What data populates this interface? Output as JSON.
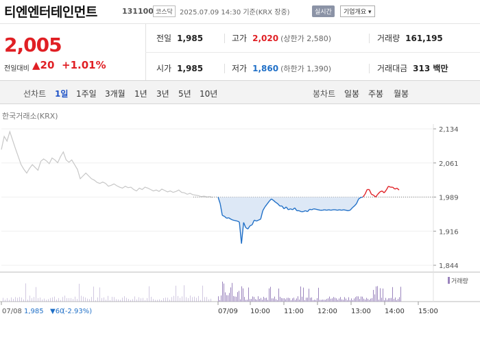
{
  "header": {
    "name": "티엔엔터테인먼트",
    "code": "131100",
    "market": "코스닥",
    "as_of": "2025.07.09 14:30 기준(KRX 장중)",
    "realtime_label": "실시간",
    "company_label": "기업개요 ▾"
  },
  "quote": {
    "price": "2,005",
    "change_label": "전일대비",
    "change_value": "▲20",
    "change_percent": "+1.01%",
    "prev_close_label": "전일",
    "prev_close": "1,985",
    "open_label": "시가",
    "open": "1,985",
    "high_label": "고가",
    "high": "2,020",
    "upper_limit": "(상한가 2,580)",
    "low_label": "저가",
    "low": "1,860",
    "lower_limit": "(하한가 1,390)",
    "volume_label": "거래량",
    "volume": "161,195",
    "amount_label": "거래대금",
    "amount": "313 백만"
  },
  "tabs": {
    "line_label": "선차트",
    "periods": [
      "1일",
      "1주일",
      "3개월",
      "1년",
      "3년",
      "5년",
      "10년"
    ],
    "active_period": 0,
    "candle_label": "봉차트",
    "candle_periods": [
      "일봉",
      "주봉",
      "월봉"
    ]
  },
  "chart_data": {
    "type": "line",
    "source": "한국거래소(KRX)",
    "ylim": [
      1844,
      2134
    ],
    "y_ticks": [
      "2,134",
      "2,061",
      "1,989",
      "1,916",
      "1,844"
    ],
    "x_ticks": [
      "07/08",
      "07/09",
      "10:00",
      "11:00",
      "12:00",
      "13:00",
      "14:00",
      "15:00"
    ],
    "baseline": 1989,
    "previous_day": {
      "values": [
        2090,
        2118,
        2108,
        2128,
        2110,
        2092,
        2075,
        2058,
        2048,
        2040,
        2050,
        2058,
        2052,
        2046,
        2065,
        2070,
        2066,
        2060,
        2072,
        2068,
        2062,
        2075,
        2085,
        2068,
        2063,
        2068,
        2058,
        2048,
        2028,
        2034,
        2040,
        2034,
        2028,
        2025,
        2020,
        2018,
        2021,
        2018,
        2012,
        2014,
        2017,
        2013,
        2010,
        2008,
        2012,
        2009,
        2010,
        2005,
        2002,
        2008,
        2005,
        2010,
        2008,
        2005,
        2002,
        2004,
        2001,
        2006,
        2003,
        2000,
        2002,
        1999,
        2001,
        2004,
        1999,
        1998,
        1995,
        1997,
        1994,
        1993,
        1992,
        1990,
        1991,
        1989,
        1990,
        1988
      ],
      "color": "#c7c7c7"
    },
    "today": {
      "values": [
        1989,
        1975,
        1950,
        1948,
        1944,
        1945,
        1942,
        1940,
        1939,
        1938,
        1936,
        1890,
        1935,
        1924,
        1921,
        1928,
        1930,
        1940,
        1938,
        1940,
        1942,
        1960,
        1968,
        1974,
        1980,
        1985,
        1982,
        1978,
        1975,
        1970,
        1970,
        1964,
        1968,
        1962,
        1964,
        1962,
        1966,
        1960,
        1960,
        1958,
        1958,
        1960,
        1958,
        1963,
        1962,
        1964,
        1963,
        1962,
        1961,
        1961,
        1962,
        1961,
        1962,
        1961,
        1962,
        1962,
        1961,
        1962,
        1961,
        1962,
        1961,
        1960,
        1961,
        1966,
        1970,
        1975,
        1985,
        1988,
        1989,
        1995,
        2005,
        2005,
        1995,
        1993,
        1989,
        1995,
        2000,
        2002,
        1998,
        2004,
        2012,
        2010,
        2010,
        2006,
        2008,
        2004
      ],
      "below_color": "#1f6fc7",
      "above_color": "#e01f24",
      "fill_color": "#d9e6f5"
    },
    "volume_legend": "거래량",
    "volume_color": "#9a84bd",
    "footer": {
      "date": "07/08",
      "price": "1,985",
      "change": "▼60",
      "percent": "(-2.93%)"
    }
  }
}
